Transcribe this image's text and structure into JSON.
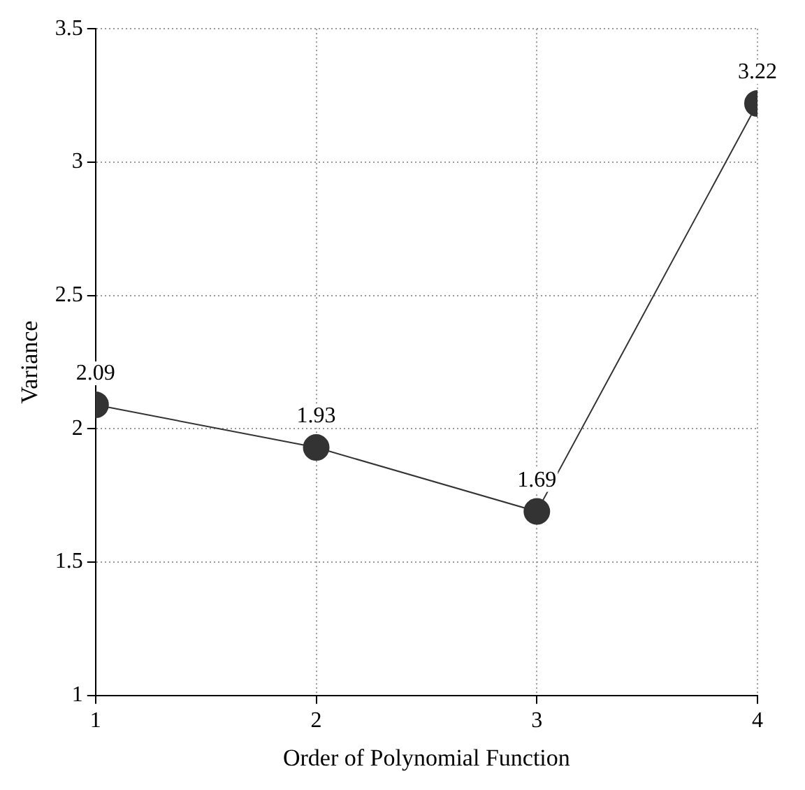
{
  "chart_data": {
    "type": "line",
    "xlabel": "Order of Polynomial Function",
    "ylabel": "Variance",
    "x": [
      1,
      2,
      3,
      4
    ],
    "series": [
      {
        "color": "#333333",
        "values": [
          2.09,
          1.93,
          1.69,
          3.22
        ]
      }
    ],
    "xlim": [
      1,
      4
    ],
    "xticks": [
      1,
      2,
      3,
      4
    ],
    "ylim": [
      1,
      3.5
    ],
    "yticks": [
      1,
      1.5,
      2,
      2.5,
      3,
      3.5
    ],
    "grid": true,
    "marker": "circle",
    "data_labels": true,
    "legend": false
  }
}
